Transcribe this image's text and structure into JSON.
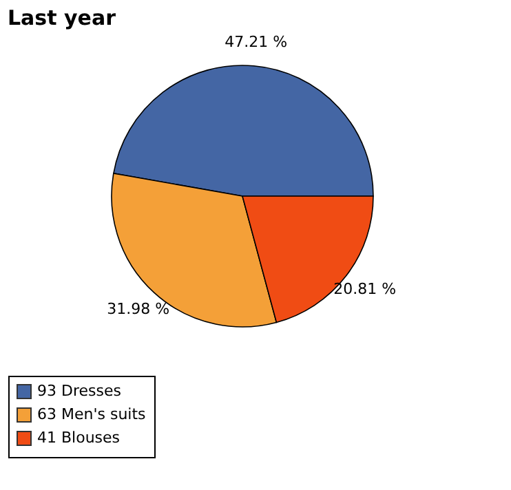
{
  "chart_data": {
    "type": "pie",
    "title": "Last year",
    "categories": [
      "93 Dresses",
      "63 Men's suits",
      "41 Blouses"
    ],
    "values": [
      47.21,
      31.98,
      20.81
    ],
    "colors": [
      "#4466a4",
      "#f4a038",
      "#f04c14"
    ],
    "value_labels": [
      "47.21 %",
      "31.98 %",
      "20.81 %"
    ],
    "legend": "bottom left"
  }
}
